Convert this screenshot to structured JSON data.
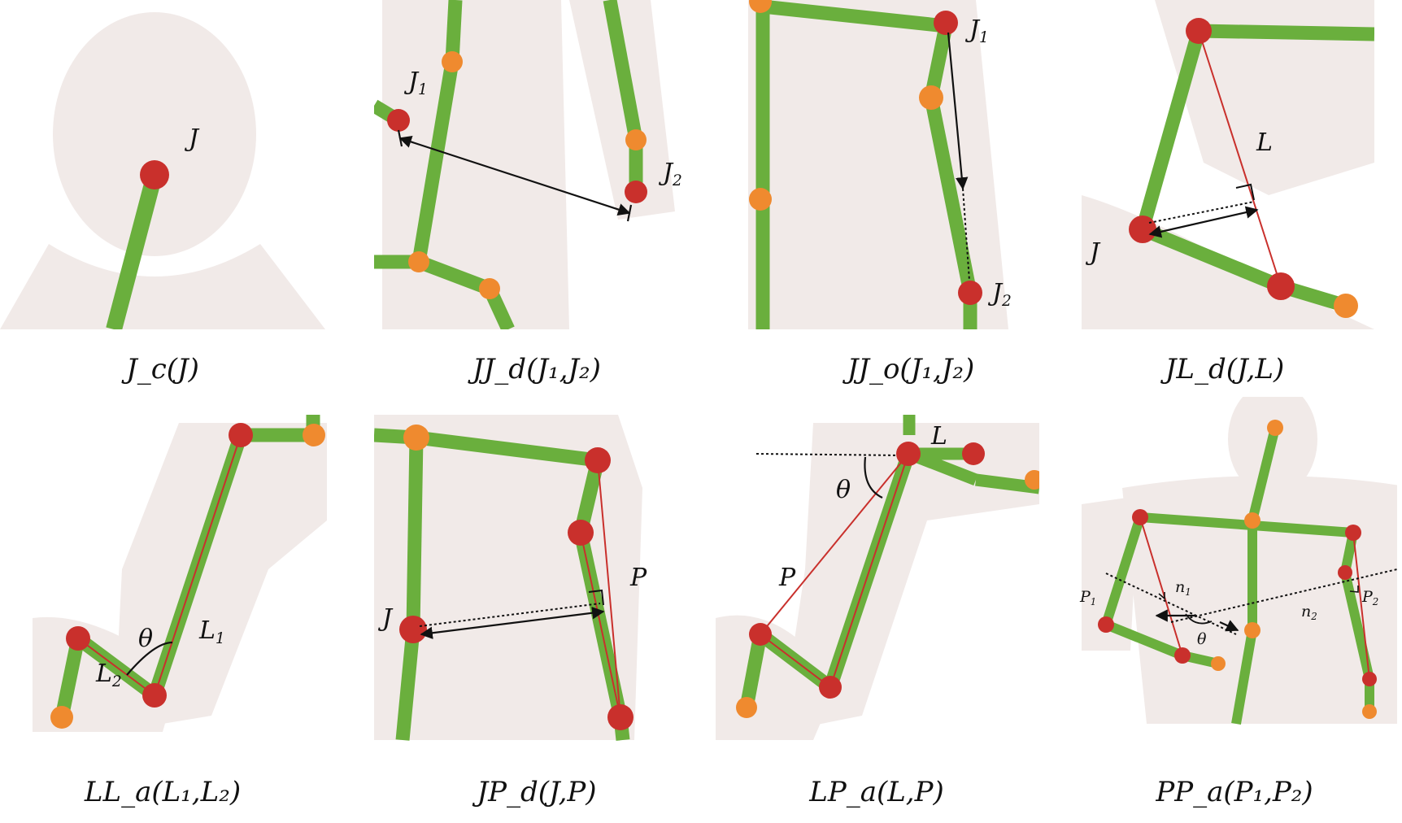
{
  "panels": [
    {
      "caption": "J_c(J)",
      "labels": {
        "J": "J"
      }
    },
    {
      "caption": "JJ_d(J₁,J₂)",
      "labels": {
        "J1": "J",
        "J1_sub": "1",
        "J2": "J",
        "J2_sub": "2"
      }
    },
    {
      "caption": "JJ_o(J₁,J₂)",
      "labels": {
        "J1": "J",
        "J1_sub": "1",
        "J2": "J",
        "J2_sub": "2"
      }
    },
    {
      "caption": "JL_d(J,L)",
      "labels": {
        "J": "J",
        "L": "L"
      }
    },
    {
      "caption": "LL_a(L₁,L₂)",
      "labels": {
        "theta": "θ",
        "L1": "L",
        "L1_sub": "1",
        "L2": "L",
        "L2_sub": "2"
      }
    },
    {
      "caption": "JP_d(J,P)",
      "labels": {
        "J": "J",
        "P": "P"
      }
    },
    {
      "caption": "LP_a(L,P)",
      "labels": {
        "L": "L",
        "theta": "θ",
        "P": "P"
      }
    },
    {
      "caption": "PP_a(P₁,P₂)",
      "labels": {
        "P1": "P",
        "P1_sub": "1",
        "n1": "n",
        "n1_sub": "1",
        "theta": "θ",
        "n2": "n",
        "n2_sub": "2",
        "P2": "P",
        "P2_sub": "2"
      }
    }
  ],
  "colors": {
    "bone": "#6aaf3d",
    "key_joint": "#c9302c",
    "joint": "#ef8a2f",
    "line": "#c9302c",
    "arrow": "#111111",
    "body": "#f1eae8"
  }
}
